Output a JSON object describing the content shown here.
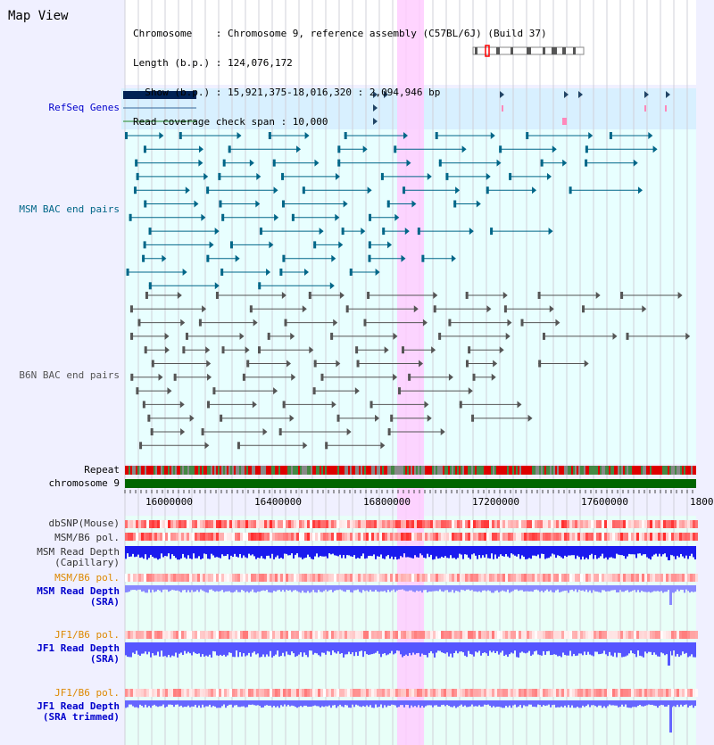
{
  "header": {
    "title": "Map View",
    "chromosome_line": "Chromosome    : Chromosome 9, reference assembly (C57BL/6J) (Build 37)",
    "length_line": "Length (b.p.) : 124,076,172",
    "show_line": "  Show (b.p.) : 15,921,375-18,016,320 : 2,094,946 bp",
    "coverage_line": "Read coverage check span : 10,000"
  },
  "tracks": {
    "refseq": "RefSeq Genes",
    "msm_bac": "MSM BAC end pairs",
    "b6n_bac": "B6N BAC end pairs",
    "repeat": "Repeat",
    "chromosome": "chromosome 9",
    "dbsnp": "dbSNP(Mouse)",
    "msm_b6_pol1": "MSM/B6 pol.",
    "msm_depth_cap": "MSM Read Depth\n(Capillary)",
    "msm_b6_pol2": "MSM/B6 pol.",
    "msm_depth_sra": "MSM Read Depth\n(SRA)",
    "jf1_b6_pol1": "JF1/B6 pol.",
    "jf1_depth_sra": "JF1 Read Depth\n(SRA)",
    "jf1_b6_pol2": "JF1/B6 pol.",
    "jf1_depth_trim": "JF1 Read Depth\n(SRA trimmed)"
  },
  "axis": {
    "ticks": [
      "16000000",
      "16400000",
      "16800000",
      "17200000",
      "17600000",
      "1800"
    ]
  },
  "colors": {
    "refseq_bg": "#d8f0ff",
    "bac_bg": "#e8ffff",
    "highlight": "#ffccff",
    "msm_line": "#006688",
    "b6n_line": "#555555",
    "chromosome": "#006600",
    "label_blue": "#0000cc",
    "label_orange": "#dd8800"
  }
}
